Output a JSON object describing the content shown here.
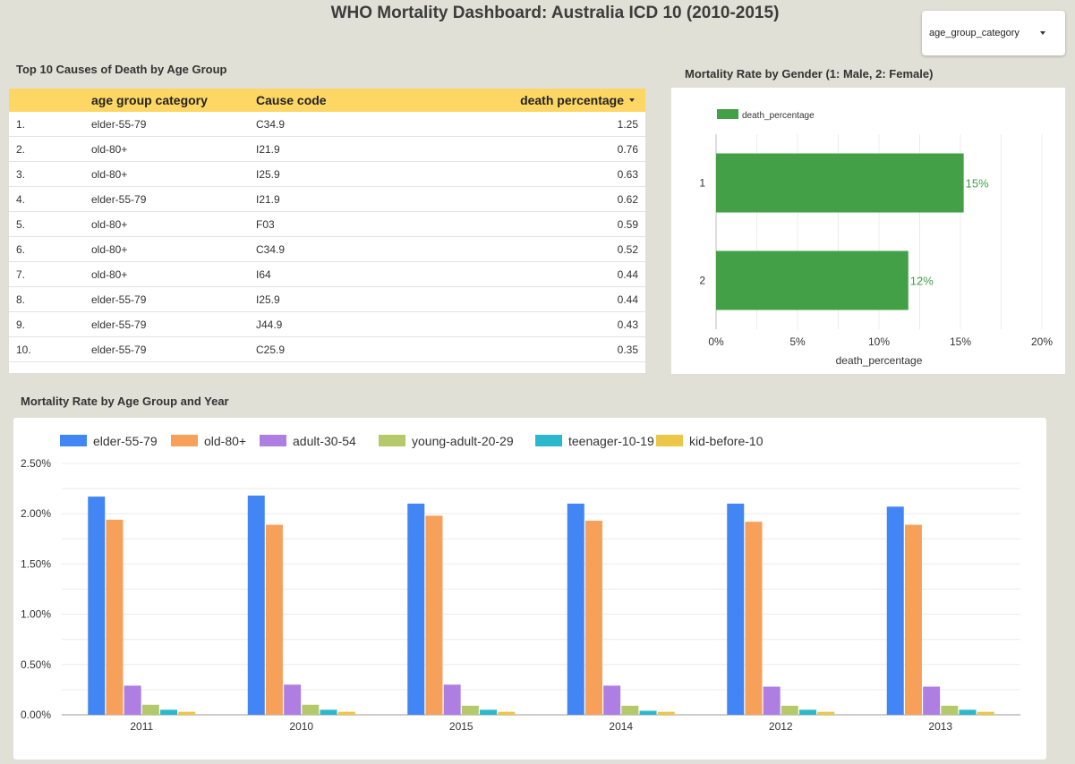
{
  "header": {
    "title": "WHO Mortality Dashboard: Australia ICD 10 (2010-2015)"
  },
  "filter": {
    "label": "age_group_category"
  },
  "top_causes": {
    "title": "Top 10 Causes of Death by Age Group",
    "columns": [
      "age group category",
      "Cause code",
      "death percentage"
    ],
    "rows": [
      {
        "num": "1.",
        "age": "elder-55-79",
        "cause": "C34.9",
        "pct": "1.25"
      },
      {
        "num": "2.",
        "age": "old-80+",
        "cause": "I21.9",
        "pct": "0.76"
      },
      {
        "num": "3.",
        "age": "old-80+",
        "cause": "I25.9",
        "pct": "0.63"
      },
      {
        "num": "4.",
        "age": "elder-55-79",
        "cause": "I21.9",
        "pct": "0.62"
      },
      {
        "num": "5.",
        "age": "old-80+",
        "cause": "F03",
        "pct": "0.59"
      },
      {
        "num": "6.",
        "age": "old-80+",
        "cause": "C34.9",
        "pct": "0.52"
      },
      {
        "num": "7.",
        "age": "old-80+",
        "cause": "I64",
        "pct": "0.44"
      },
      {
        "num": "8.",
        "age": "elder-55-79",
        "cause": "I25.9",
        "pct": "0.44"
      },
      {
        "num": "9.",
        "age": "elder-55-79",
        "cause": "J44.9",
        "pct": "0.43"
      },
      {
        "num": "10.",
        "age": "elder-55-79",
        "cause": "C25.9",
        "pct": "0.35"
      }
    ]
  },
  "chart_data": [
    {
      "type": "bar",
      "orientation": "horizontal",
      "title": "Mortality Rate by Gender (1: Male, 2: Female)",
      "categories": [
        "1",
        "2"
      ],
      "series": [
        {
          "name": "death_percentage",
          "values": [
            15.2,
            11.8
          ],
          "labels": [
            "15%",
            "12%"
          ]
        }
      ],
      "xlabel": "death_percentage",
      "xlim": [
        0,
        20
      ],
      "xticks": [
        "0%",
        "5%",
        "10%",
        "15%",
        "20%"
      ],
      "legend": "top-left",
      "grid": true,
      "color": "#43a047"
    },
    {
      "type": "bar",
      "title": "Mortality Rate by Age Group and Year",
      "categories": [
        "2011",
        "2010",
        "2015",
        "2014",
        "2012",
        "2013"
      ],
      "series": [
        {
          "name": "elder-55-79",
          "color": "#4285f4",
          "values": [
            2.17,
            2.18,
            2.1,
            2.1,
            2.1,
            2.07
          ]
        },
        {
          "name": "old-80+",
          "color": "#f6a05a",
          "values": [
            1.94,
            1.89,
            1.98,
            1.93,
            1.92,
            1.89
          ]
        },
        {
          "name": "adult-30-54",
          "color": "#ae7ee3",
          "values": [
            0.29,
            0.3,
            0.3,
            0.29,
            0.28,
            0.28
          ]
        },
        {
          "name": "young-adult-20-29",
          "color": "#b5c96b",
          "values": [
            0.1,
            0.1,
            0.09,
            0.09,
            0.09,
            0.09
          ]
        },
        {
          "name": "teenager-10-19",
          "color": "#2bb8cd",
          "values": [
            0.05,
            0.05,
            0.05,
            0.04,
            0.05,
            0.05
          ]
        },
        {
          "name": "kid-before-10",
          "color": "#ecc645",
          "values": [
            0.03,
            0.03,
            0.03,
            0.03,
            0.03,
            0.03
          ]
        }
      ],
      "ylim": [
        0,
        2.5
      ],
      "yticks": [
        "0.00%",
        "0.50%",
        "1.00%",
        "1.50%",
        "2.00%",
        "2.50%"
      ],
      "legend": "top",
      "grid": true
    }
  ]
}
